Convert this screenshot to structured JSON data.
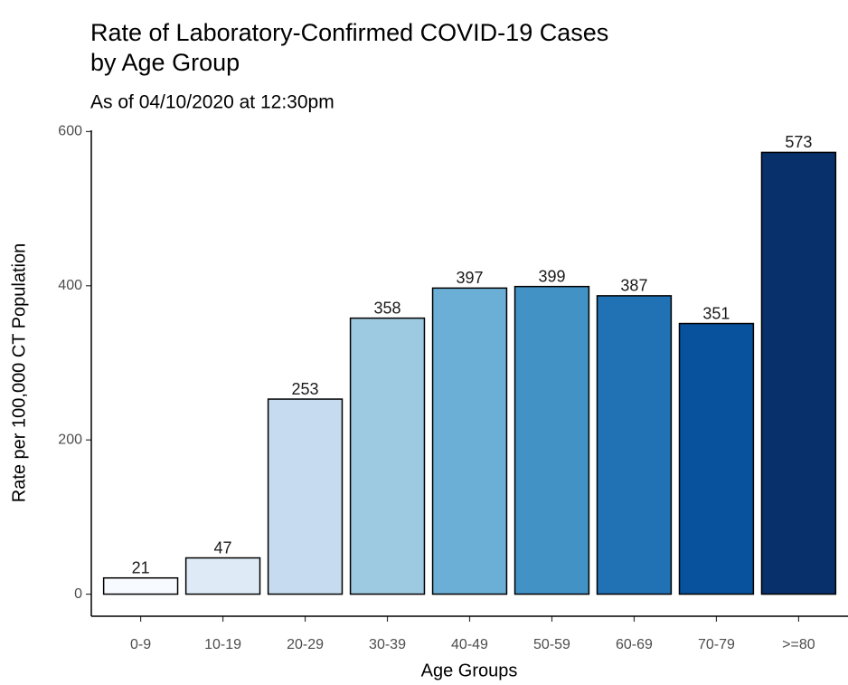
{
  "chart_data": {
    "type": "bar",
    "title": [
      "Rate of Laboratory-Confirmed COVID-19 Cases",
      "by Age Group"
    ],
    "subtitle": "As of 04/10/2020 at 12:30pm",
    "x_label": "Age Groups",
    "y_label": "Rate per 100,000 CT Population",
    "categories": [
      "0-9",
      "10-19",
      "20-29",
      "30-39",
      "40-49",
      "50-59",
      "60-69",
      "70-79",
      ">=80"
    ],
    "values": [
      21,
      47,
      253,
      358,
      397,
      399,
      387,
      351,
      573
    ],
    "colors": [
      "#F7FBFF",
      "#DEEBF7",
      "#C6DBEF",
      "#9ECAE1",
      "#6BAED6",
      "#4292C6",
      "#2171B5",
      "#08519C",
      "#08306B"
    ],
    "ylim": [
      -28.65,
      601.65
    ],
    "yticks": [
      0,
      200,
      400,
      600
    ]
  }
}
